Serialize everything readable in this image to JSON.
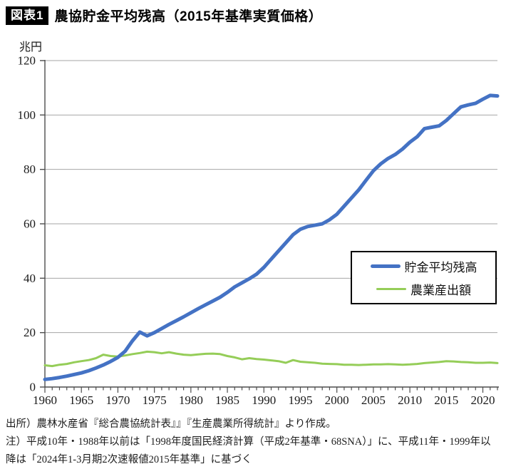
{
  "header": {
    "badge": "図表1",
    "title": "農協貯金平均残高（2015年基準実質価格）"
  },
  "notes": [
    "出所）農林水産省『総合農協統計表』』『生産農業所得統計』より作成。",
    "注）平成10年・1988年以前は「1998年度国民経済計算（平成2年基準・68SNA）」に、平成11年・1999年以",
    "降は「2024年1-3月期2次速報値2015年基準」に基づく"
  ],
  "chart_data": {
    "type": "line",
    "title": "農協貯金平均残高（2015年基準実質価格）",
    "unit": "兆円",
    "ylabel": "兆円",
    "ylim": [
      0,
      120
    ],
    "ytick_step": 20,
    "grid": "horizontal",
    "legend_position": "middle-right-box",
    "x_start": 1960,
    "x_end": 2022,
    "x_step": 1,
    "xticks": [
      1960,
      1965,
      1970,
      1975,
      1980,
      1985,
      1990,
      1995,
      2000,
      2005,
      2010,
      2015,
      2020
    ],
    "colors": {
      "axis": "#4d4d4d",
      "grid": "#a6a6a6",
      "text": "#1a1a1a"
    },
    "series": [
      {
        "name": "貯金平均残高",
        "color": "#4472C4",
        "stroke_width": 5,
        "values": [
          2.8,
          3.1,
          3.5,
          4.0,
          4.6,
          5.2,
          6.0,
          7.0,
          8.1,
          9.4,
          10.9,
          13.2,
          17.0,
          20.2,
          18.8,
          20.0,
          21.5,
          23.0,
          24.4,
          25.8,
          27.3,
          28.8,
          30.2,
          31.6,
          33.0,
          34.8,
          36.8,
          38.3,
          39.8,
          41.5,
          44.0,
          47.0,
          50.0,
          53.0,
          56.0,
          58.0,
          59.0,
          59.5,
          60.0,
          61.5,
          63.5,
          66.5,
          69.5,
          72.5,
          76.0,
          79.5,
          82.0,
          84.0,
          85.5,
          87.5,
          90.0,
          92.0,
          95.0,
          95.5,
          96.0,
          98.0,
          100.5,
          103.0,
          103.7,
          104.3,
          105.8,
          107.2,
          107.0
        ]
      },
      {
        "name": "農業産出額",
        "color": "#95CD58",
        "stroke_width": 3,
        "values": [
          8.0,
          7.7,
          8.2,
          8.5,
          9.1,
          9.5,
          9.9,
          10.6,
          11.9,
          11.4,
          11.2,
          11.6,
          12.1,
          12.5,
          13.0,
          12.8,
          12.4,
          12.8,
          12.3,
          11.9,
          11.7,
          12.0,
          12.2,
          12.3,
          12.1,
          11.4,
          10.9,
          10.2,
          10.6,
          10.3,
          10.1,
          9.8,
          9.5,
          8.9,
          9.9,
          9.3,
          9.1,
          8.9,
          8.6,
          8.5,
          8.4,
          8.2,
          8.2,
          8.1,
          8.2,
          8.3,
          8.3,
          8.4,
          8.3,
          8.2,
          8.3,
          8.5,
          8.8,
          9.0,
          9.2,
          9.5,
          9.4,
          9.2,
          9.1,
          8.9,
          8.9,
          9.0,
          8.8
        ]
      }
    ]
  }
}
